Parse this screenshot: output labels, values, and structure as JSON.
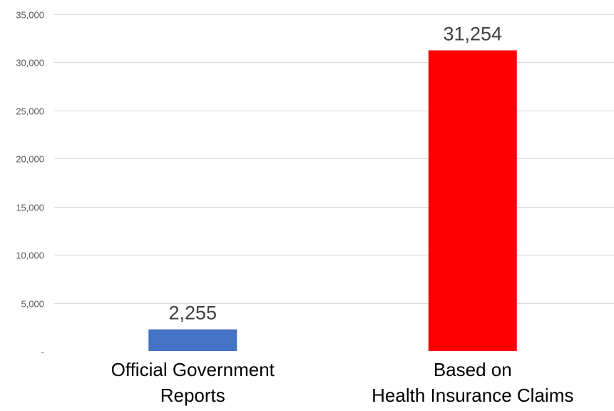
{
  "chart_data": {
    "type": "bar",
    "categories": [
      [
        "Official Government",
        "Reports"
      ],
      [
        "Based on",
        "Health Insurance Claims"
      ]
    ],
    "values": [
      2255,
      31254
    ],
    "value_labels": [
      "2,255",
      "31,254"
    ],
    "bar_colors": [
      "#4472c4",
      "#ff0000"
    ],
    "ylim": [
      0,
      35000
    ],
    "y_ticks": [
      0,
      5000,
      10000,
      15000,
      20000,
      25000,
      30000,
      35000
    ],
    "y_tick_labels": [
      "-",
      "5,000",
      "10,000",
      "15,000",
      "20,000",
      "25,000",
      "30,000",
      "35,000"
    ],
    "grid": true,
    "legend": "none",
    "title": "",
    "xlabel": "",
    "ylabel": ""
  }
}
